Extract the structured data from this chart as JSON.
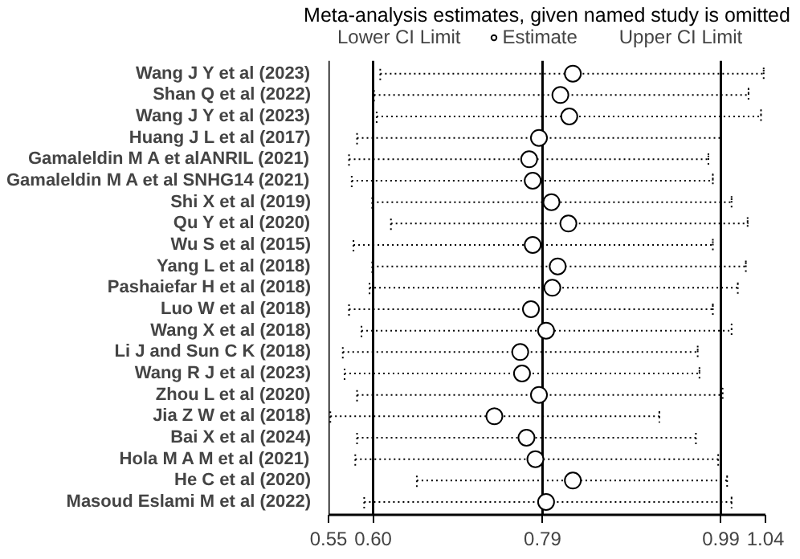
{
  "chart_data": {
    "type": "scatter",
    "orientation": "horizontal",
    "title": "Meta-analysis estimates, given named study is omitted",
    "categories": [
      "Wang J Y et al (2023)",
      "Shan Q et al (2022)",
      "Wang J Y et al (2023)",
      "Huang J L et al (2017)",
      "Gamaleldin M A et alANRIL (2021)",
      "Gamaleldin M A et al SNHG14 (2021)",
      "Shi X et al (2019)",
      "Qu Y et al (2020)",
      "Wu S et al (2015)",
      "Yang L et al (2018)",
      "Pashaiefar H et al (2018)",
      "Luo W et al (2018)",
      "Wang X et al (2018)",
      "Li J and Sun C K (2018)",
      "Wang R J et al (2023)",
      "Zhou L et al (2020)",
      "Jia Z W et al (2018)",
      "Bai X et al (2024)",
      "Hola M A M et al (2021)",
      "He C et al (2020)",
      "Masoud Eslami M et al (2022)"
    ],
    "series": [
      {
        "name": "Estimate",
        "color": "#000000",
        "values": [
          0.824,
          0.81,
          0.82,
          0.786,
          0.775,
          0.779,
          0.8,
          0.819,
          0.779,
          0.807,
          0.801,
          0.777,
          0.794,
          0.765,
          0.767,
          0.786,
          0.736,
          0.772,
          0.782,
          0.824,
          0.794
        ],
        "errors": [
          [
            0.608,
            1.038
          ],
          [
            0.601,
            1.021
          ],
          [
            0.604,
            1.035
          ],
          [
            0.582,
            0.99
          ],
          [
            0.573,
            0.976
          ],
          [
            0.576,
            0.981
          ],
          [
            0.599,
            1.002
          ],
          [
            0.62,
            1.02
          ],
          [
            0.578,
            0.981
          ],
          [
            0.599,
            1.018
          ],
          [
            0.596,
            1.009
          ],
          [
            0.573,
            0.981
          ],
          [
            0.587,
            1.002
          ],
          [
            0.566,
            0.964
          ],
          [
            0.568,
            0.966
          ],
          [
            0.582,
            0.992
          ],
          [
            0.552,
            0.921
          ],
          [
            0.582,
            0.962
          ],
          [
            0.58,
            0.987
          ],
          [
            0.649,
            0.997
          ],
          [
            0.59,
            1.002
          ]
        ]
      }
    ],
    "annotations": [
      "Lower CI Limit",
      "Upper CI Limit"
    ],
    "xlim": [
      0.55,
      1.04
    ],
    "xticks": [
      0.55,
      {
        "value": 0.6,
        "label": "0.60"
      },
      0.79,
      0.99,
      1.04
    ],
    "ref_lines": [
      {
        "axis": "x",
        "value": 0.6
      },
      {
        "axis": "x",
        "value": 0.79
      },
      {
        "axis": "x",
        "value": 0.99
      }
    ],
    "marker": "circle",
    "line_style": "dotted",
    "legend": "top"
  }
}
